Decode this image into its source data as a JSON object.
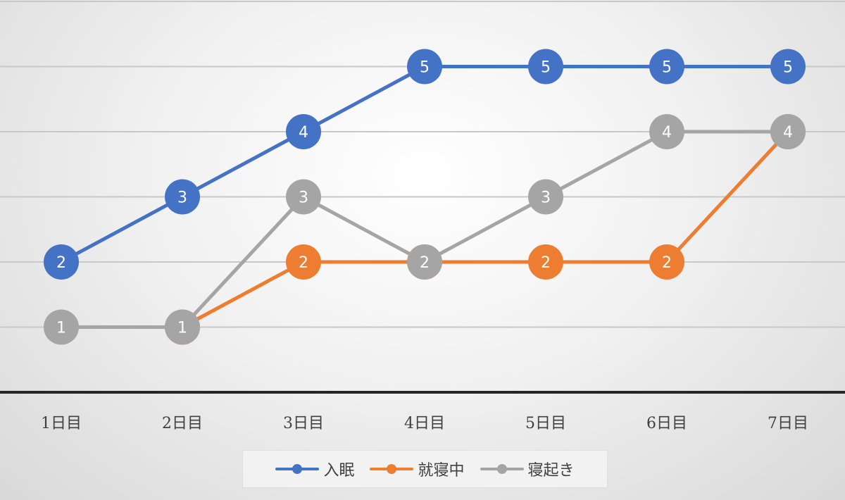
{
  "chart_data": {
    "type": "line",
    "categories": [
      "1日目",
      "2日目",
      "3日目",
      "4日目",
      "5日目",
      "6日目",
      "7日目"
    ],
    "series": [
      {
        "name": "入眠",
        "color": "#4472c4",
        "values": [
          2,
          3,
          4,
          5,
          5,
          5,
          5
        ]
      },
      {
        "name": "就寝中",
        "color": "#ed7d31",
        "values": [
          null,
          1,
          2,
          2,
          2,
          2,
          4
        ]
      },
      {
        "name": "寝起き",
        "color": "#a5a5a5",
        "values": [
          1,
          1,
          3,
          2,
          3,
          4,
          4
        ]
      }
    ],
    "ylim": [
      0,
      6
    ],
    "grid": true,
    "legend_position": "bottom",
    "data_labels": true
  }
}
